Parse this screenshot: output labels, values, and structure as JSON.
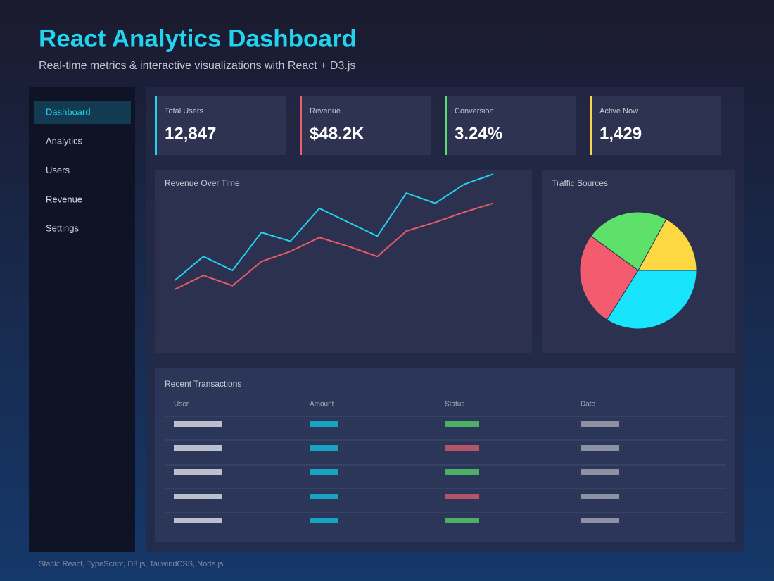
{
  "header": {
    "title": "React Analytics Dashboard",
    "subtitle": "Real-time metrics & interactive visualizations with React + D3.js"
  },
  "sidebar": {
    "items": [
      "Dashboard",
      "Analytics",
      "Users",
      "Revenue",
      "Settings"
    ],
    "active": 0
  },
  "kpis": [
    {
      "label": "Total Users",
      "value": "12,847",
      "color": "#22d3ee"
    },
    {
      "label": "Revenue",
      "value": "$48.2K",
      "color": "#f05d6c"
    },
    {
      "label": "Conversion",
      "value": "3.24%",
      "color": "#5bdc6b"
    },
    {
      "label": "Active Now",
      "value": "1,429",
      "color": "#fcd34d"
    }
  ],
  "chart_data": [
    {
      "type": "line",
      "title": "Revenue Over Time",
      "ylim": [
        0,
        100
      ],
      "series": [
        {
          "color": "#22d3ee",
          "values": [
            12,
            31,
            20,
            50,
            43,
            69,
            58,
            47,
            81,
            73,
            88,
            96
          ]
        },
        {
          "color": "#e85a68",
          "values": [
            5,
            16,
            8,
            27,
            35,
            46,
            39,
            31,
            51,
            58,
            66,
            73
          ]
        }
      ]
    },
    {
      "type": "pie",
      "title": "Traffic Sources",
      "categories": [
        null,
        null,
        null,
        null
      ],
      "values": [
        34,
        26,
        23,
        17
      ],
      "colors": [
        "#18e4fb",
        "#f25c6e",
        "#5de16a",
        "#fdd843"
      ]
    }
  ],
  "table": {
    "title": "Recent Transactions",
    "columns": [
      "User",
      "Amount",
      "Status",
      "Date"
    ]
  },
  "footer": "Stack: React, TypeScript, D3.js, TailwindCSS, Node.js"
}
